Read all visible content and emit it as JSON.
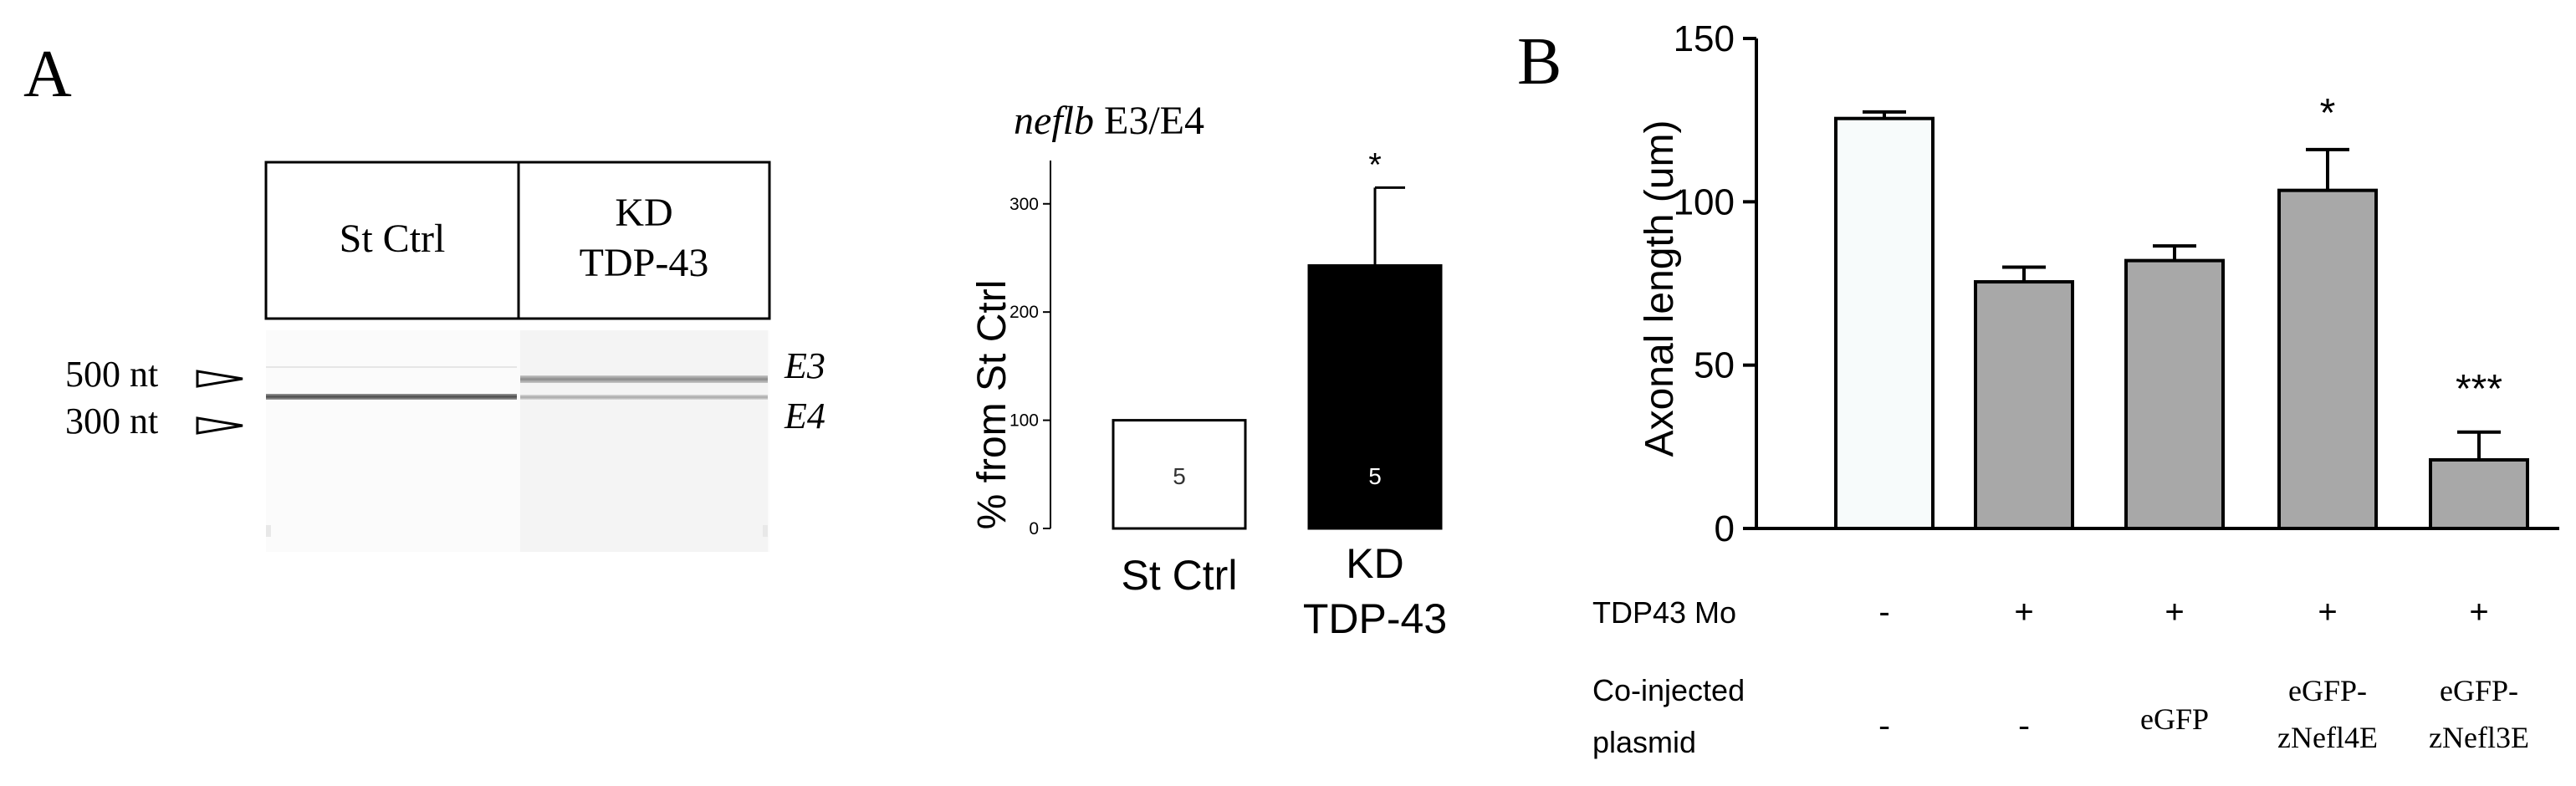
{
  "panel_a": {
    "letter": "A",
    "gel": {
      "lanes": [
        {
          "label_lines": [
            "St Ctrl"
          ]
        },
        {
          "label_lines": [
            "KD",
            "TDP-43"
          ]
        }
      ],
      "markers": [
        "500 nt",
        "300 nt"
      ],
      "isoforms": [
        "E3",
        "E4"
      ]
    }
  },
  "panel_b": {
    "letter": "B",
    "row_labels": {
      "morpholino": "TDP43 Mo",
      "plasmid_lines": [
        "Co-injected",
        "plasmid"
      ]
    },
    "morpholino_values": [
      "-",
      "+",
      "+",
      "+",
      "+"
    ],
    "plasmid_values": [
      [
        "-"
      ],
      [
        "-"
      ],
      [
        "eGFP"
      ],
      [
        "eGFP-",
        "zNefl4E"
      ],
      [
        "eGFP-",
        "zNefl3E"
      ]
    ]
  },
  "chart_data": [
    {
      "type": "bar",
      "title_italic": "neflb",
      "title_rest": " E3/E4",
      "ylabel": "% from St Ctrl",
      "categories": [
        [
          "St Ctrl"
        ],
        [
          "KD",
          "TDP-43"
        ]
      ],
      "values": [
        100,
        243
      ],
      "errors": [
        0,
        72
      ],
      "n_labels": [
        "5",
        "5"
      ],
      "significance": [
        "",
        "*"
      ],
      "fill_colors": [
        "#ffffff",
        "#000000"
      ],
      "n_label_colors": [
        "#333333",
        "#ffffff"
      ],
      "ylim": [
        0,
        340
      ],
      "yticks": [
        "0",
        "100",
        "200",
        "300"
      ]
    },
    {
      "type": "bar",
      "ylabel": "Axonal length (um)",
      "values": [
        125.5,
        75.5,
        82,
        103.5,
        21
      ],
      "errors": [
        2,
        4.5,
        4.5,
        12.5,
        8.5
      ],
      "significance": [
        "",
        "",
        "",
        "*",
        "***"
      ],
      "fill_colors": [
        "#f7fbfb",
        "#a8a8a8",
        "#a8a8a8",
        "#a8a8a8",
        "#a8a8a8"
      ],
      "ylim": [
        0,
        150
      ],
      "yticks": [
        "0",
        "50",
        "100",
        "150"
      ]
    }
  ]
}
